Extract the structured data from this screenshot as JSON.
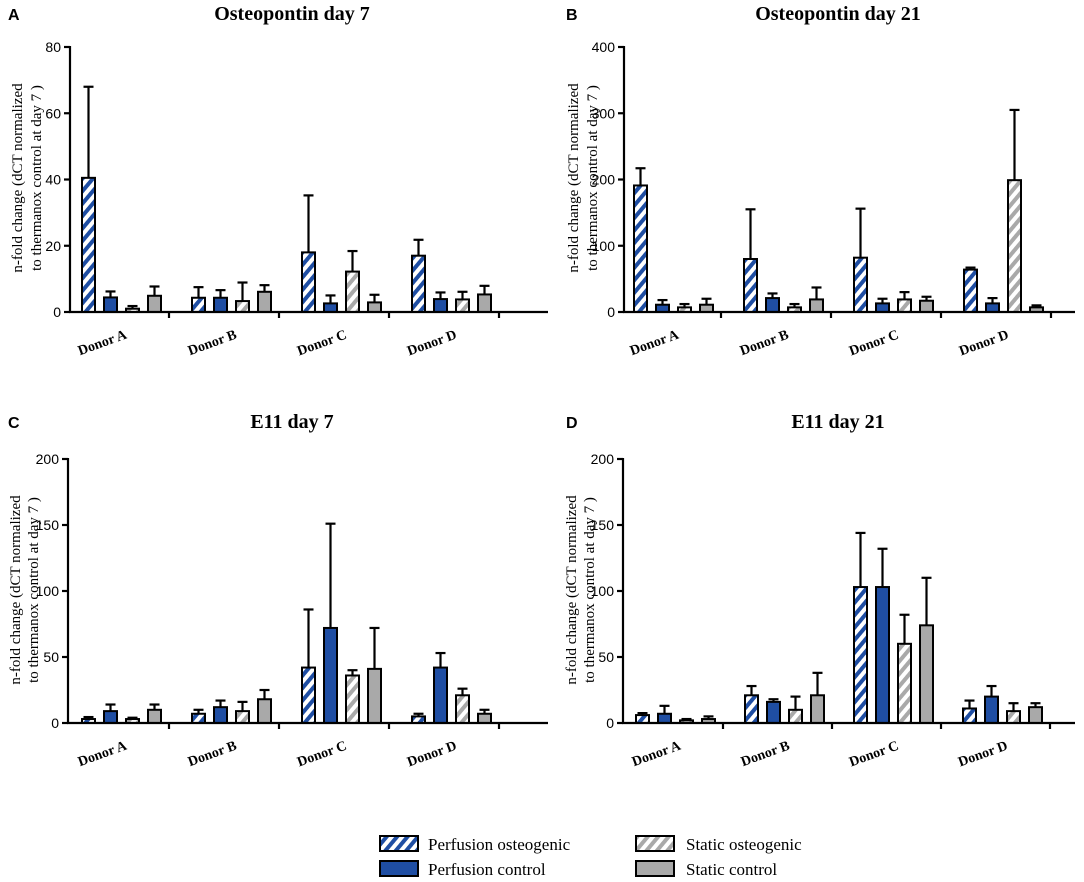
{
  "colors": {
    "perfusion": "#1f4ea3",
    "static": "#a9a9a9",
    "hatch_bg": "#ffffff",
    "outline": "#000000"
  },
  "legend": [
    {
      "label": "Perfusion osteogenic",
      "style": "hatch",
      "color": "#1f4ea3"
    },
    {
      "label": "Static osteogenic",
      "style": "hatch",
      "color": "#a9a9a9"
    },
    {
      "label": "Perfusion control",
      "style": "solid",
      "color": "#1f4ea3"
    },
    {
      "label": "Static control",
      "style": "solid",
      "color": "#a9a9a9"
    }
  ],
  "chart_data": [
    {
      "panel": "A",
      "type": "bar",
      "title": "Osteopontin day 7",
      "ylabel_lines": [
        "n-fold change (dCT normalized",
        "to thermanox control at day 7 )"
      ],
      "categories": [
        "Donor A",
        "Donor B",
        "Donor C",
        "Donor D"
      ],
      "ylim": [
        0,
        80
      ],
      "yticks": [
        0,
        20,
        40,
        60,
        80
      ],
      "series": [
        {
          "name": "Perfusion osteogenic",
          "values": [
            40.5,
            4.3,
            18,
            17
          ],
          "errors": [
            27.5,
            3.2,
            17.2,
            4.8
          ]
        },
        {
          "name": "Perfusion control",
          "values": [
            4.4,
            4.3,
            2.6,
            3.9
          ],
          "errors": [
            1.8,
            2.3,
            2.4,
            2.0
          ]
        },
        {
          "name": "Static osteogenic",
          "values": [
            1.0,
            3.3,
            12.2,
            3.8
          ],
          "errors": [
            0.8,
            5.6,
            6.2,
            2.3
          ]
        },
        {
          "name": "Static control",
          "values": [
            4.9,
            6.1,
            2.9,
            5.3
          ],
          "errors": [
            2.8,
            2.0,
            2.3,
            2.6
          ]
        }
      ]
    },
    {
      "panel": "B",
      "type": "bar",
      "title": "Osteopontin day 21",
      "ylabel_lines": [
        "n-fold change (dCT normalized",
        "to thermanox control at day 7 )"
      ],
      "categories": [
        "Donor A",
        "Donor B",
        "Donor C",
        "Donor D"
      ],
      "ylim": [
        0,
        400
      ],
      "yticks": [
        0,
        100,
        200,
        300,
        400
      ],
      "series": [
        {
          "name": "Perfusion osteogenic",
          "values": [
            191,
            80,
            82,
            64
          ],
          "errors": [
            26,
            75,
            74,
            3
          ]
        },
        {
          "name": "Perfusion control",
          "values": [
            11,
            21,
            13,
            13
          ],
          "errors": [
            7,
            7,
            7,
            8
          ]
        },
        {
          "name": "Static osteogenic",
          "values": [
            7,
            7,
            19,
            199
          ],
          "errors": [
            5,
            5,
            11,
            106
          ]
        },
        {
          "name": "Static control",
          "values": [
            11,
            19,
            17,
            7
          ],
          "errors": [
            9,
            18,
            6,
            3
          ]
        }
      ]
    },
    {
      "panel": "C",
      "type": "bar",
      "title": "E11 day 7",
      "ylabel_lines": [
        "n-fold change (dCT normalized",
        "to thermanox control at day 7 )"
      ],
      "categories": [
        "Donor A",
        "Donor B",
        "Donor C",
        "Donor D"
      ],
      "ylim": [
        0,
        200
      ],
      "yticks": [
        0,
        50,
        100,
        150,
        200
      ],
      "series": [
        {
          "name": "Perfusion osteogenic",
          "values": [
            3,
            7,
            42,
            5
          ],
          "errors": [
            1.5,
            3,
            44,
            2
          ]
        },
        {
          "name": "Perfusion control",
          "values": [
            9,
            12,
            72,
            42
          ],
          "errors": [
            5,
            5,
            79,
            11
          ]
        },
        {
          "name": "Static osteogenic",
          "values": [
            3,
            9,
            36,
            21
          ],
          "errors": [
            1,
            7,
            4,
            5
          ]
        },
        {
          "name": "Static control",
          "values": [
            10,
            18,
            41,
            7
          ],
          "errors": [
            4,
            7,
            31,
            3
          ]
        }
      ]
    },
    {
      "panel": "D",
      "type": "bar",
      "title": "E11 day 21",
      "ylabel_lines": [
        "n-fold change (dCT normalized",
        "to thermanox control at day 7 )"
      ],
      "categories": [
        "Donor A",
        "Donor B",
        "Donor C",
        "Donor D"
      ],
      "ylim": [
        0,
        200
      ],
      "yticks": [
        0,
        50,
        100,
        150,
        200
      ],
      "series": [
        {
          "name": "Perfusion osteogenic",
          "values": [
            6,
            21,
            103,
            11
          ],
          "errors": [
            1.5,
            7,
            41,
            6
          ]
        },
        {
          "name": "Perfusion control",
          "values": [
            7,
            16,
            103,
            20
          ],
          "errors": [
            6,
            2,
            29,
            8
          ]
        },
        {
          "name": "Static osteogenic",
          "values": [
            2,
            10,
            60,
            9
          ],
          "errors": [
            1,
            10,
            22,
            6
          ]
        },
        {
          "name": "Static control",
          "values": [
            3,
            21,
            74,
            12
          ],
          "errors": [
            2,
            17,
            36,
            3
          ]
        }
      ]
    }
  ]
}
